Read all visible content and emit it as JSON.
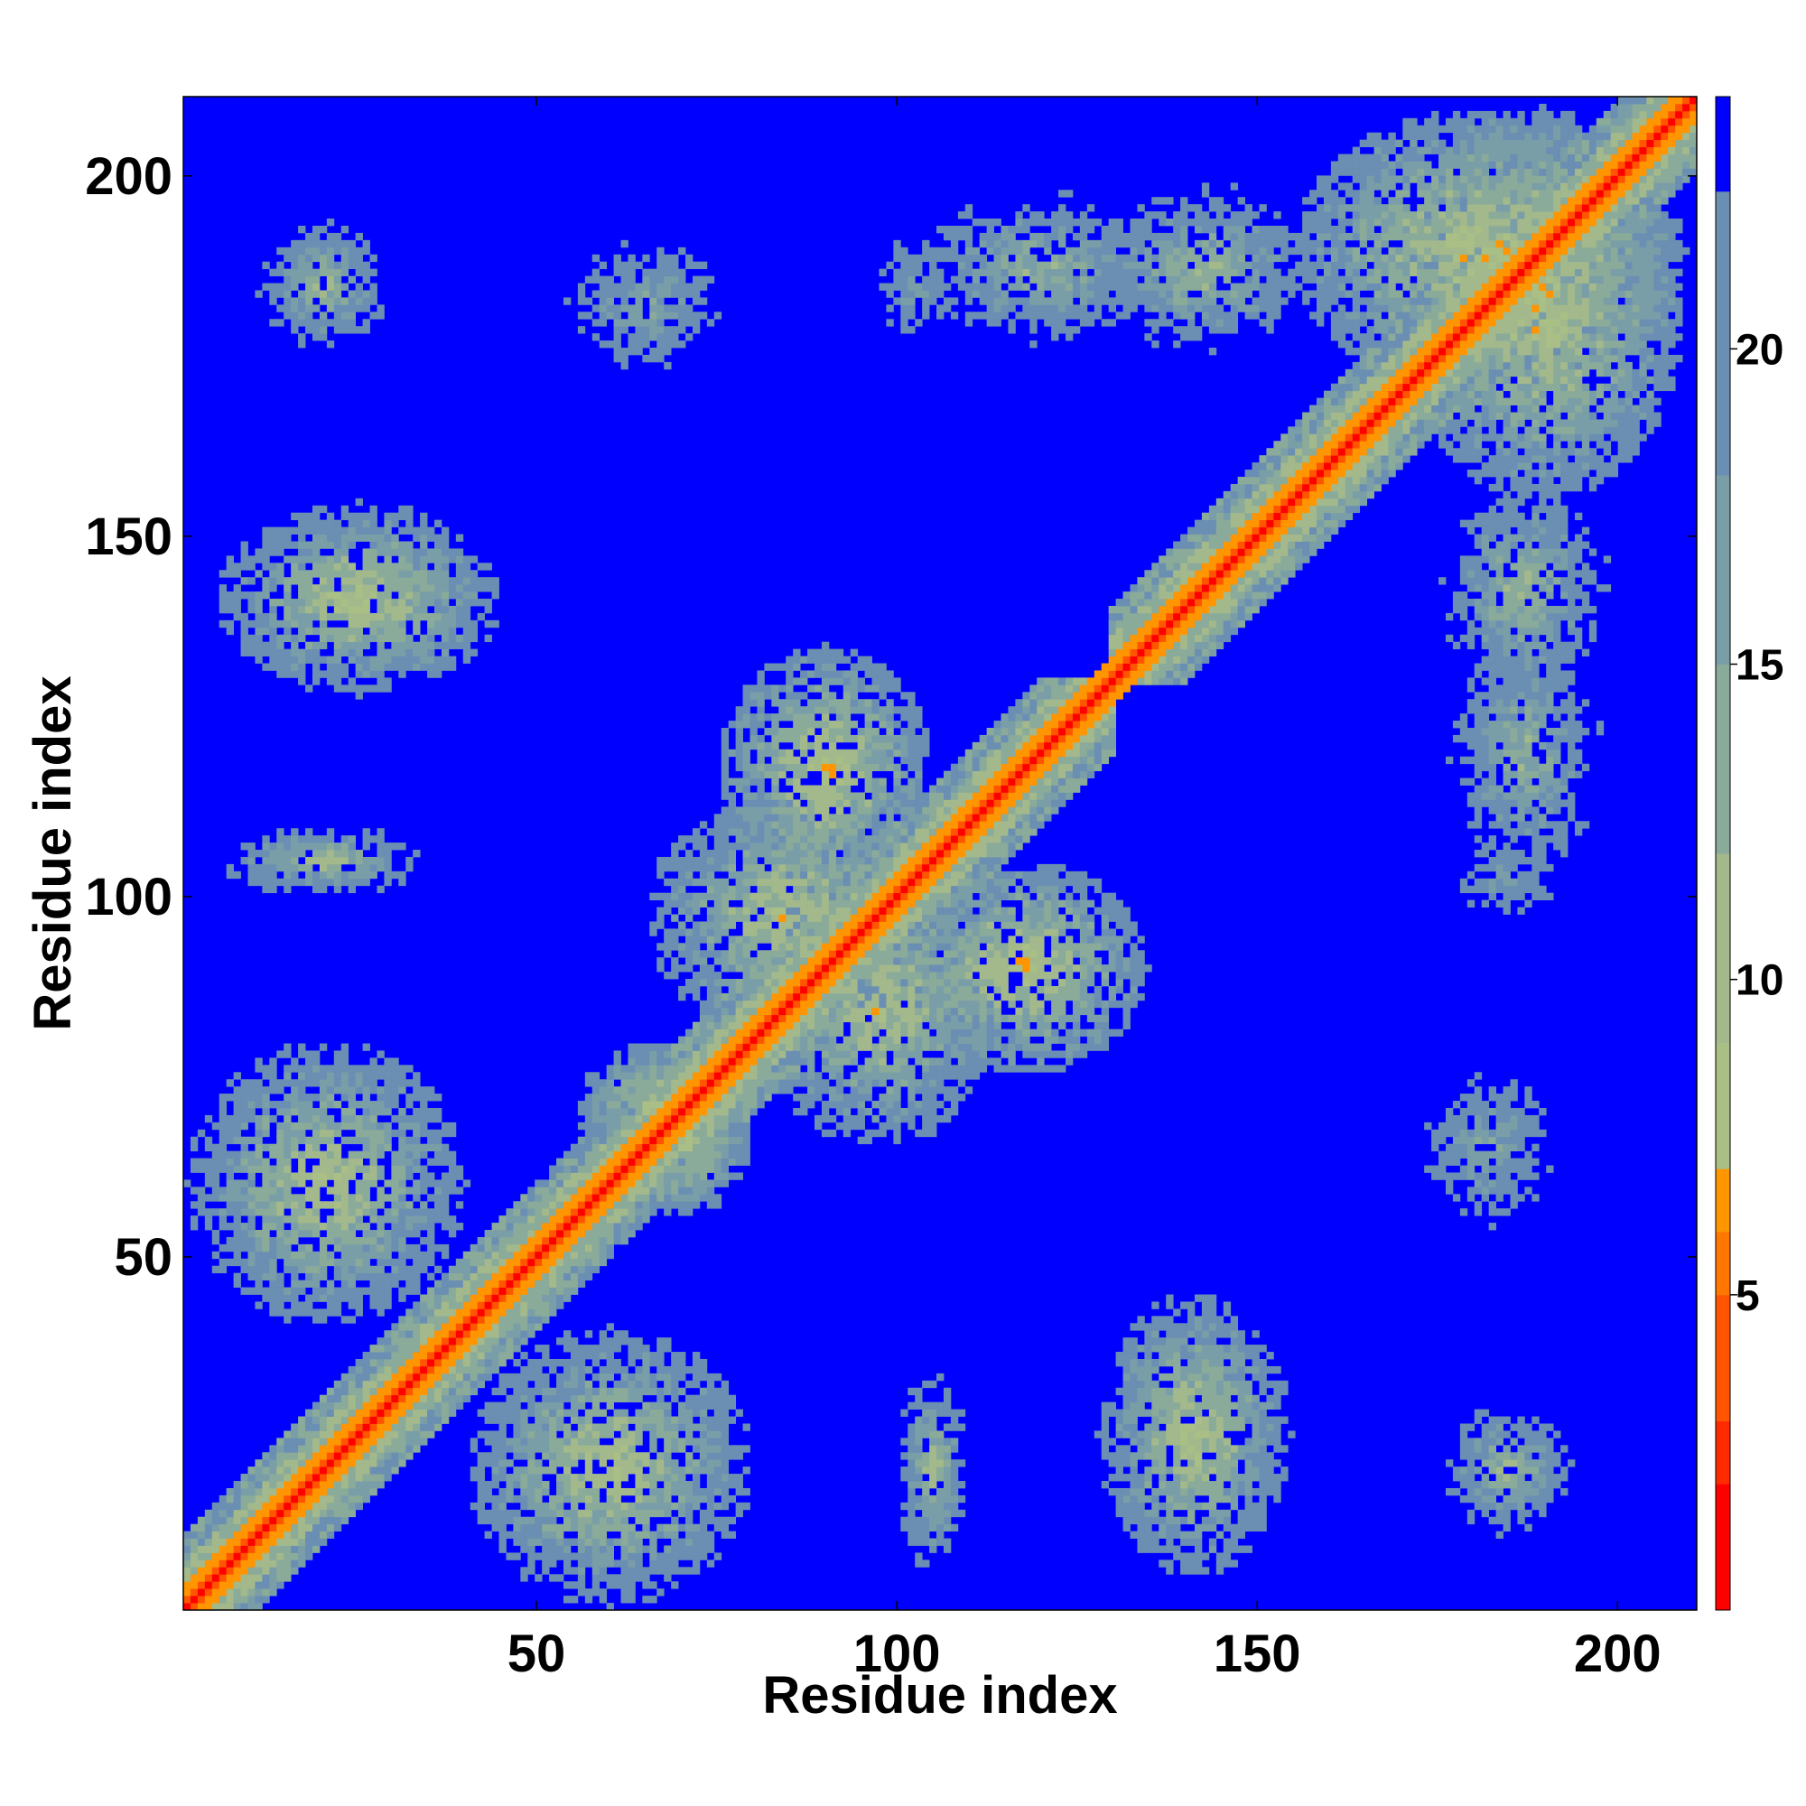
{
  "chart_data": {
    "type": "heatmap",
    "title": "",
    "xlabel": "Residue index",
    "ylabel": "Residue index",
    "xlim": [
      1,
      211
    ],
    "ylim": [
      1,
      211
    ],
    "xticks": [
      50,
      100,
      150,
      200
    ],
    "yticks": [
      50,
      100,
      150,
      200
    ],
    "grid": false,
    "matrix": {
      "n_residues": 211,
      "symmetric": true,
      "value_range": [
        0,
        24
      ],
      "background_value": 24,
      "diagonal_value": 1,
      "contact_regions": [
        {
          "i": [
            1,
            60
          ],
          "j": [
            1,
            60
          ],
          "band": "near-diagonal"
        },
        {
          "i": [
            52,
            130
          ],
          "j": [
            52,
            130
          ],
          "band": "near-diagonal"
        },
        {
          "i": [
            130,
            211
          ],
          "j": [
            130,
            211
          ],
          "band": "near-diagonal"
        },
        {
          "i": [
            1,
            40
          ],
          "j": [
            40,
            80
          ],
          "peak": 6
        },
        {
          "i": [
            5,
            35
          ],
          "j": [
            100,
            110
          ],
          "peak": 8
        },
        {
          "i": [
            5,
            45
          ],
          "j": [
            128,
            155
          ],
          "peak": 6
        },
        {
          "i": [
            10,
            30
          ],
          "j": [
            175,
            195
          ],
          "peak": 9
        },
        {
          "i": [
            55,
            80
          ],
          "j": [
            60,
            80
          ],
          "peak": 5
        },
        {
          "i": [
            80,
            115
          ],
          "j": [
            65,
            105
          ],
          "peak": 6
        },
        {
          "i": [
            75,
            105
          ],
          "j": [
            100,
            135
          ],
          "peak": 5
        },
        {
          "i": [
            155,
            210
          ],
          "j": [
            170,
            210
          ],
          "peak": 5
        },
        {
          "i": [
            175,
            200
          ],
          "j": [
            100,
            140
          ],
          "peak": 10
        },
        {
          "i": [
            170,
            195
          ],
          "j": [
            50,
            80
          ],
          "peak": 12
        },
        {
          "i": [
            95,
            110
          ],
          "j": [
            175,
            195
          ],
          "peak": 12
        },
        {
          "i": [
            125,
            160
          ],
          "j": [
            175,
            200
          ],
          "peak": 9
        }
      ]
    },
    "colorbar": {
      "ticks": [
        5,
        10,
        15,
        20
      ],
      "range": [
        0,
        24
      ],
      "colors": [
        {
          "from": 0,
          "to": 2,
          "color": "#ff0000"
        },
        {
          "from": 2,
          "to": 3,
          "color": "#ff2a00"
        },
        {
          "from": 3,
          "to": 5,
          "color": "#ff5500"
        },
        {
          "from": 5,
          "to": 6,
          "color": "#ff7700"
        },
        {
          "from": 6,
          "to": 7,
          "color": "#ff9500"
        },
        {
          "from": 7,
          "to": 9,
          "color": "#a9bf85"
        },
        {
          "from": 9,
          "to": 12,
          "color": "#a3b98c"
        },
        {
          "from": 12,
          "to": 15,
          "color": "#8aaa9a"
        },
        {
          "from": 15,
          "to": 18,
          "color": "#7a9ea8"
        },
        {
          "from": 18,
          "to": 22.5,
          "color": "#6a8fb2"
        },
        {
          "from": 22.5,
          "to": 24,
          "color": "#0000ff"
        }
      ]
    }
  },
  "colors": {
    "background": "#0000ff",
    "diagonal": "#ff0000"
  }
}
